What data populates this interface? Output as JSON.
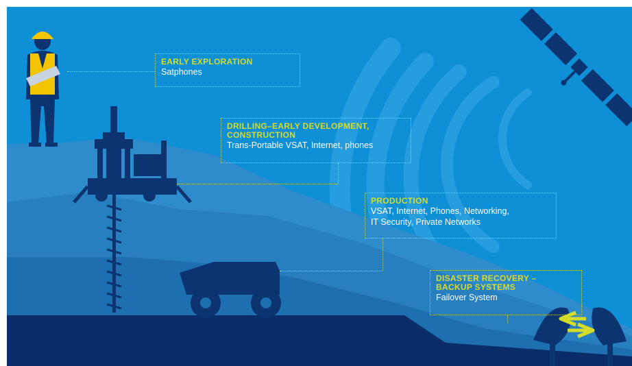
{
  "colors": {
    "sky": "#0f8fd6",
    "ground_mid": "#2f8ccc",
    "ground_dark": "#1e6fb0",
    "ground_darker": "#195e98",
    "base": "#0a2d6a",
    "silhouette": "#0b3470",
    "accent": "#d6dc2a",
    "text": "#ffffff"
  },
  "stages": [
    {
      "title": "EARLY EXPLORATION",
      "subtitle": "Satphones"
    },
    {
      "title_line1": "DRILLING–EARLY DEVELOPMENT,",
      "title_line2": "CONSTRUCTION",
      "subtitle": "Trans-Portable VSAT, Internet, phones"
    },
    {
      "title": "PRODUCTION",
      "subtitle_line1": "VSAT, Internet, Phones, Networking,",
      "subtitle_line2": "IT Security, Private Networks"
    },
    {
      "title_line1": "DISASTER RECOVERY –",
      "title_line2": "BACKUP SYSTEMS",
      "subtitle": "Failover System"
    }
  ],
  "icons": [
    "surveyor-icon",
    "drilling-rig-icon",
    "haul-truck-icon",
    "satellite-icon",
    "satellite-dish-icon",
    "double-arrow-icon",
    "signal-waves-icon"
  ]
}
